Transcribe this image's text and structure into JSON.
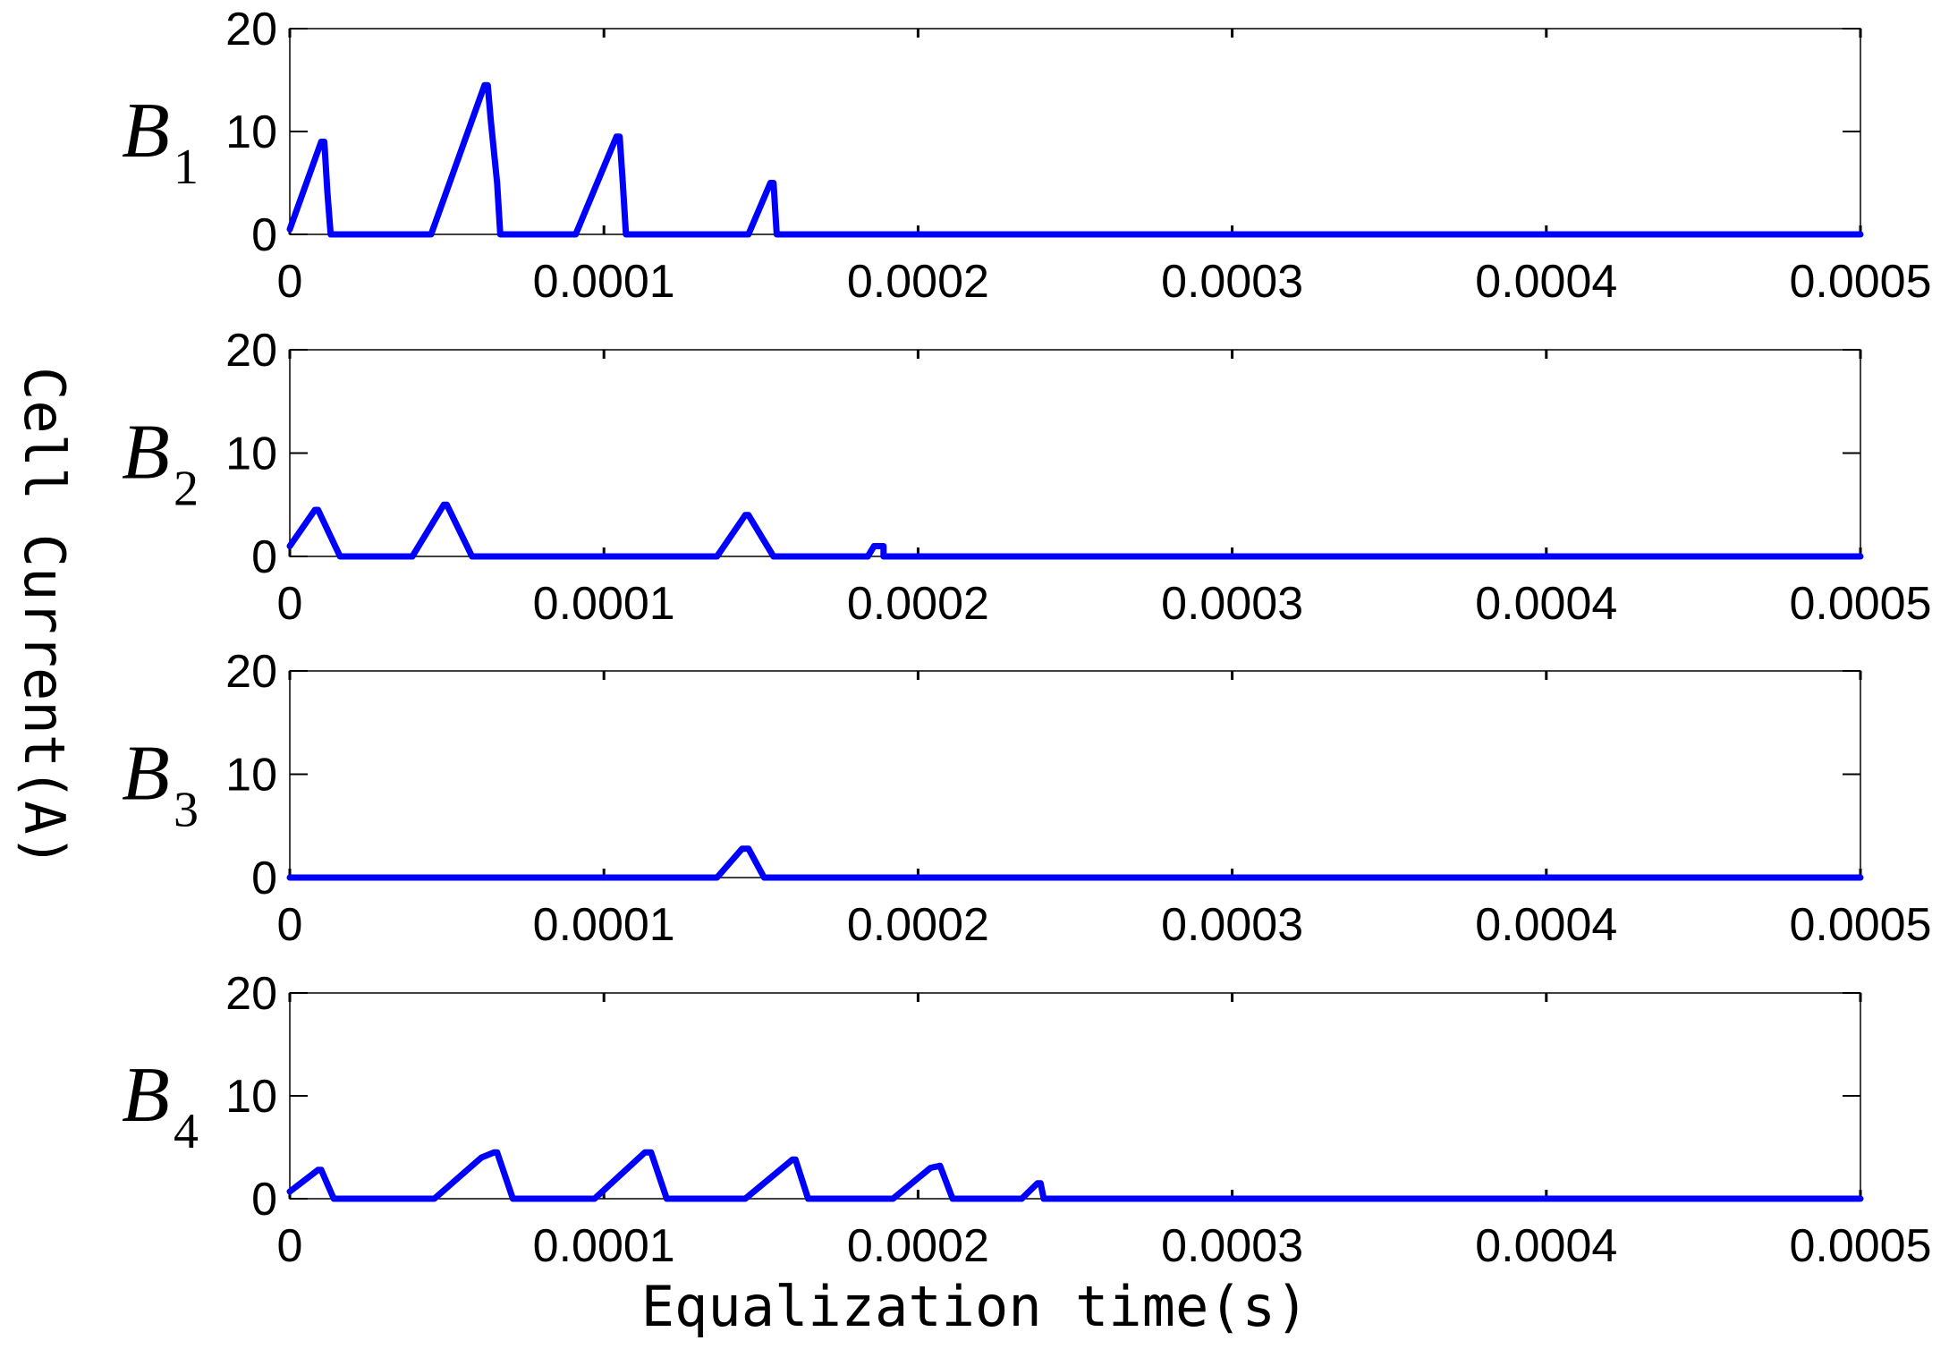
{
  "figure": {
    "ylabel": "Cell Current(A)",
    "xlabel": "Equalization time(s)"
  },
  "chart_data": [
    {
      "type": "line",
      "panel_label": "B",
      "panel_sub": "1",
      "xlim": [
        0,
        0.0005
      ],
      "ylim": [
        0,
        20
      ],
      "x_ticks": [
        "0",
        "0.0001",
        "0.0002",
        "0.0003",
        "0.0004",
        "0.0005"
      ],
      "y_ticks": [
        "0",
        "10",
        "20"
      ],
      "grid": false,
      "color": "#0000ff",
      "points": [
        [
          0,
          0.5
        ],
        [
          1e-05,
          9
        ],
        [
          1.1e-05,
          9
        ],
        [
          1.2e-05,
          4
        ],
        [
          1.3e-05,
          0
        ],
        [
          4.5e-05,
          0
        ],
        [
          6.2e-05,
          14.5
        ],
        [
          6.3e-05,
          14.5
        ],
        [
          6.4e-05,
          11
        ],
        [
          6.6e-05,
          5
        ],
        [
          6.7e-05,
          0
        ],
        [
          9.1e-05,
          0
        ],
        [
          0.000104,
          9.5
        ],
        [
          0.000105,
          9.5
        ],
        [
          0.000106,
          5
        ],
        [
          0.000107,
          0
        ],
        [
          0.000146,
          0
        ],
        [
          0.000153,
          5
        ],
        [
          0.000154,
          5
        ],
        [
          0.000155,
          0
        ],
        [
          0.0005,
          0
        ]
      ]
    },
    {
      "type": "line",
      "panel_label": "B",
      "panel_sub": "2",
      "xlim": [
        0,
        0.0005
      ],
      "ylim": [
        0,
        20
      ],
      "x_ticks": [
        "0",
        "0.0001",
        "0.0002",
        "0.0003",
        "0.0004",
        "0.0005"
      ],
      "y_ticks": [
        "0",
        "10",
        "20"
      ],
      "grid": false,
      "color": "#0000ff",
      "points": [
        [
          0,
          1
        ],
        [
          8e-06,
          4.5
        ],
        [
          9e-06,
          4.5
        ],
        [
          1.6e-05,
          0
        ],
        [
          3.9e-05,
          0
        ],
        [
          4.9e-05,
          5
        ],
        [
          5e-05,
          5
        ],
        [
          5.8e-05,
          0
        ],
        [
          0.000136,
          0
        ],
        [
          0.000145,
          4
        ],
        [
          0.000146,
          4
        ],
        [
          0.000154,
          0
        ],
        [
          0.000184,
          0
        ],
        [
          0.000186,
          1
        ],
        [
          0.000189,
          1
        ],
        [
          0.000189,
          0
        ],
        [
          0.0005,
          0
        ]
      ]
    },
    {
      "type": "line",
      "panel_label": "B",
      "panel_sub": "3",
      "xlim": [
        0,
        0.0005
      ],
      "ylim": [
        0,
        20
      ],
      "x_ticks": [
        "0",
        "0.0001",
        "0.0002",
        "0.0003",
        "0.0004",
        "0.0005"
      ],
      "y_ticks": [
        "0",
        "10",
        "20"
      ],
      "grid": false,
      "color": "#0000ff",
      "points": [
        [
          0,
          0
        ],
        [
          0.000136,
          0
        ],
        [
          0.000144,
          2.8
        ],
        [
          0.000146,
          2.8
        ],
        [
          0.000151,
          0
        ],
        [
          0.0005,
          0
        ]
      ]
    },
    {
      "type": "line",
      "panel_label": "B",
      "panel_sub": "4",
      "xlim": [
        0,
        0.0005
      ],
      "ylim": [
        0,
        20
      ],
      "x_ticks": [
        "0",
        "0.0001",
        "0.0002",
        "0.0003",
        "0.0004",
        "0.0005"
      ],
      "y_ticks": [
        "0",
        "10",
        "20"
      ],
      "grid": false,
      "color": "#0000ff",
      "points": [
        [
          0,
          0.7
        ],
        [
          9e-06,
          2.8
        ],
        [
          1e-05,
          2.8
        ],
        [
          1.4e-05,
          0
        ],
        [
          4.6e-05,
          0
        ],
        [
          6.1e-05,
          4
        ],
        [
          6.5e-05,
          4.5
        ],
        [
          6.6e-05,
          4.5
        ],
        [
          7.1e-05,
          0
        ],
        [
          9.7e-05,
          0
        ],
        [
          0.000113,
          4.5
        ],
        [
          0.000115,
          4.5
        ],
        [
          0.00012,
          0
        ],
        [
          0.000145,
          0
        ],
        [
          0.00016,
          3.8
        ],
        [
          0.000161,
          3.8
        ],
        [
          0.000165,
          0
        ],
        [
          0.000192,
          0
        ],
        [
          0.000204,
          3
        ],
        [
          0.000207,
          3.2
        ],
        [
          0.000211,
          0
        ],
        [
          0.000233,
          0
        ],
        [
          0.000238,
          1.5
        ],
        [
          0.000239,
          1.5
        ],
        [
          0.00024,
          0
        ],
        [
          0.0005,
          0
        ]
      ]
    }
  ]
}
